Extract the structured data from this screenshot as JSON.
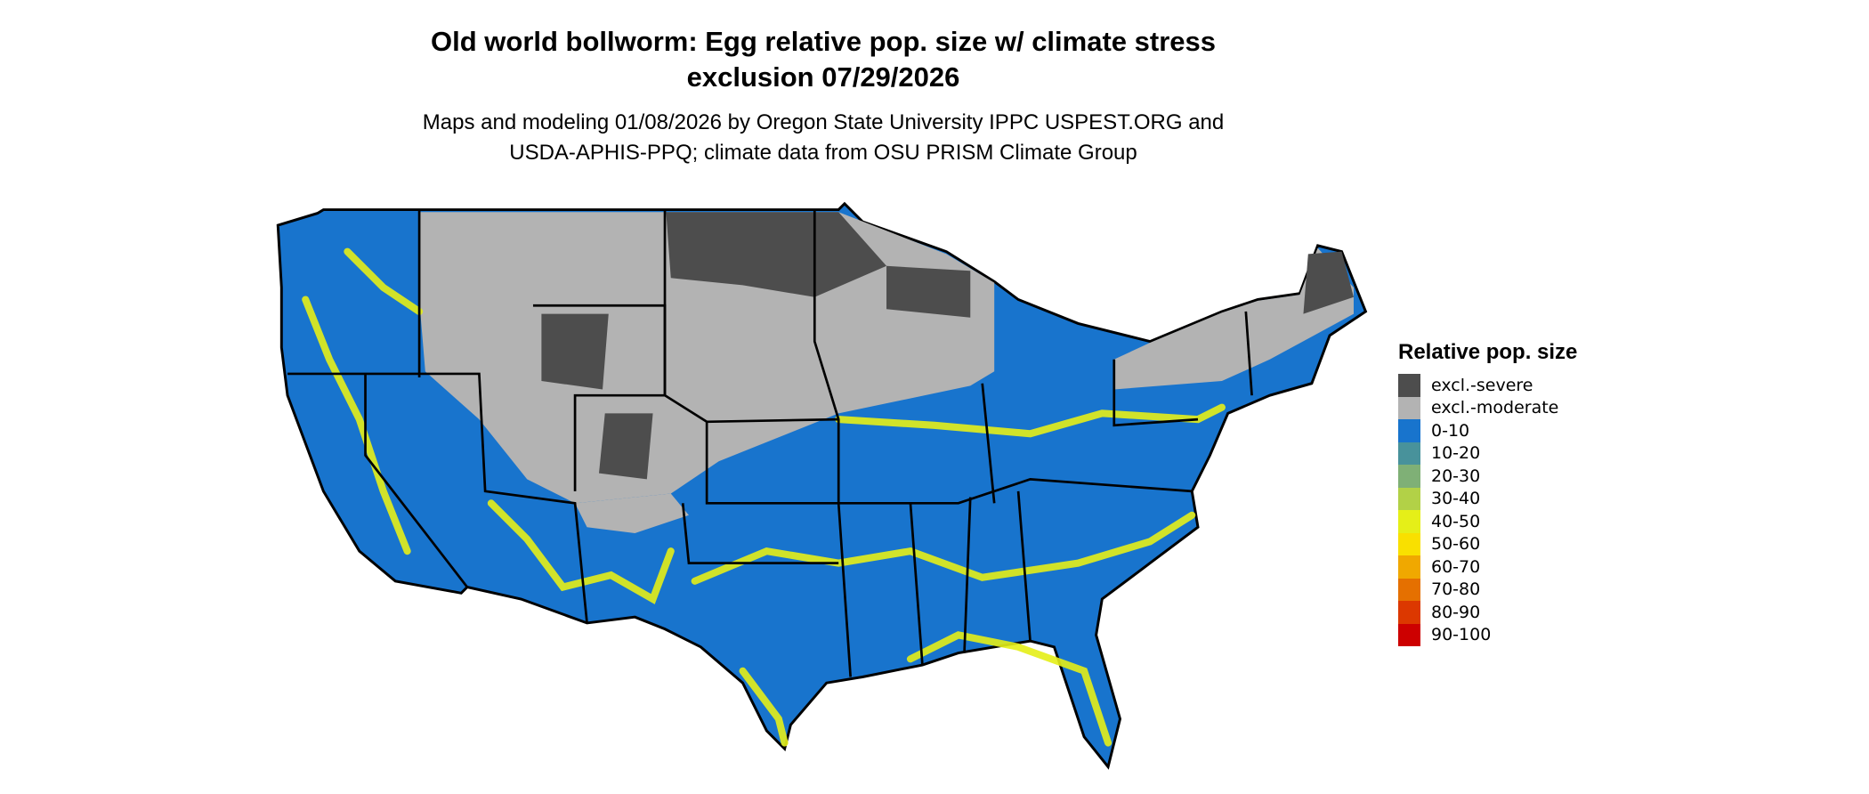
{
  "title_line1": "Old world bollworm: Egg relative pop. size w/ climate stress",
  "title_line2": "exclusion 07/29/2026",
  "subtitle_line1": "Maps and modeling 01/08/2026 by Oregon State University IPPC USPEST.ORG and",
  "subtitle_line2": "USDA-APHIS-PPQ; climate data from OSU PRISM Climate Group",
  "map": {
    "region": "Contiguous United States",
    "state_borders": true
  },
  "legend": {
    "title": "Relative pop. size",
    "placement": "right",
    "items": [
      {
        "label": "excl.-severe",
        "color": "#4d4d4d"
      },
      {
        "label": "excl.-moderate",
        "color": "#b3b3b3"
      },
      {
        "label": "0-10",
        "color": "#1874cd"
      },
      {
        "label": "10-20",
        "color": "#48929b"
      },
      {
        "label": "20-30",
        "color": "#7fb076"
      },
      {
        "label": "30-40",
        "color": "#b2d147"
      },
      {
        "label": "40-50",
        "color": "#e5ef18"
      },
      {
        "label": "50-60",
        "color": "#f9e000"
      },
      {
        "label": "60-70",
        "color": "#f0a800"
      },
      {
        "label": "70-80",
        "color": "#e57000"
      },
      {
        "label": "80-90",
        "color": "#dc3800"
      },
      {
        "label": "90-100",
        "color": "#cd0000"
      }
    ]
  }
}
